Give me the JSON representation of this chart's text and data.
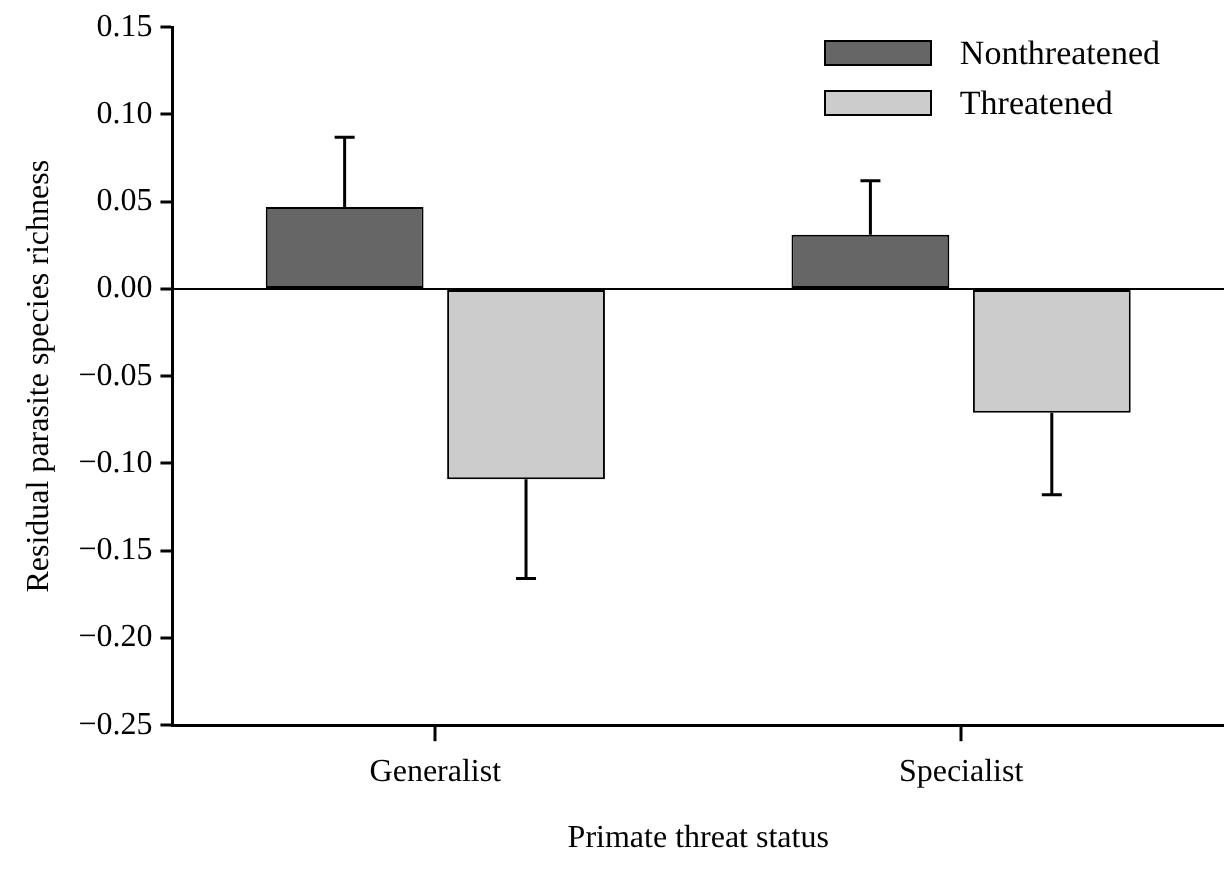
{
  "chart_data": {
    "type": "bar",
    "xlabel": "Primate threat status",
    "ylabel": "Residual parasite species richness",
    "categories": [
      "Generalist",
      "Specialist"
    ],
    "series": [
      {
        "name": "Nonthreatened",
        "color": "#666666",
        "values": [
          0.047,
          0.031
        ],
        "errors": [
          [
            0.047,
            0.087
          ],
          [
            0.031,
            0.062
          ]
        ]
      },
      {
        "name": "Threatened",
        "color": "#cccccc",
        "values": [
          -0.109,
          -0.071
        ],
        "errors": [
          [
            -0.166,
            -0.109
          ],
          [
            -0.118,
            -0.071
          ]
        ]
      }
    ],
    "ylim": [
      -0.25,
      0.15
    ],
    "yticks": [
      {
        "value": -0.25,
        "label": "−0.25"
      },
      {
        "value": -0.2,
        "label": "−0.20"
      },
      {
        "value": -0.15,
        "label": "−0.15"
      },
      {
        "value": -0.1,
        "label": "−0.10"
      },
      {
        "value": -0.05,
        "label": "−0.05"
      },
      {
        "value": 0,
        "label": "0.00"
      },
      {
        "value": 0.05,
        "label": "0.05"
      },
      {
        "value": 0.1,
        "label": "0.10"
      },
      {
        "value": 0.15,
        "label": "0.15"
      }
    ],
    "ref_lines": [
      {
        "axis": "y",
        "value": 0,
        "color": "#000000"
      }
    ],
    "grid": false,
    "legend": "top right"
  }
}
